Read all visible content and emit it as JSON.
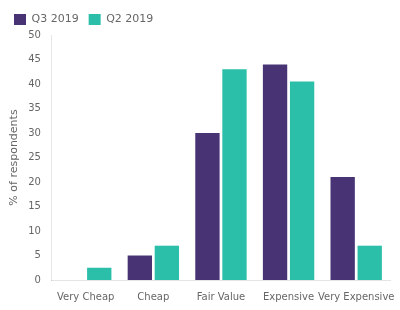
{
  "chart_data": {
    "type": "bar",
    "ylabel": "% of respondents",
    "categories": [
      "Very Cheap",
      "Cheap",
      "Fair Value",
      "Expensive",
      "Very Expensive"
    ],
    "series": [
      {
        "name": "Q3 2019",
        "color": "#483475",
        "values": [
          0,
          5,
          30,
          44,
          21
        ]
      },
      {
        "name": "Q2 2019",
        "color": "#2BBFAA",
        "values": [
          2.5,
          7,
          43,
          40.5,
          7
        ]
      }
    ],
    "ylim": [
      0,
      50
    ],
    "yticks": [
      0,
      5,
      10,
      15,
      20,
      25,
      30,
      35,
      40,
      45,
      50
    ],
    "grid": false,
    "legend": "upper left"
  }
}
